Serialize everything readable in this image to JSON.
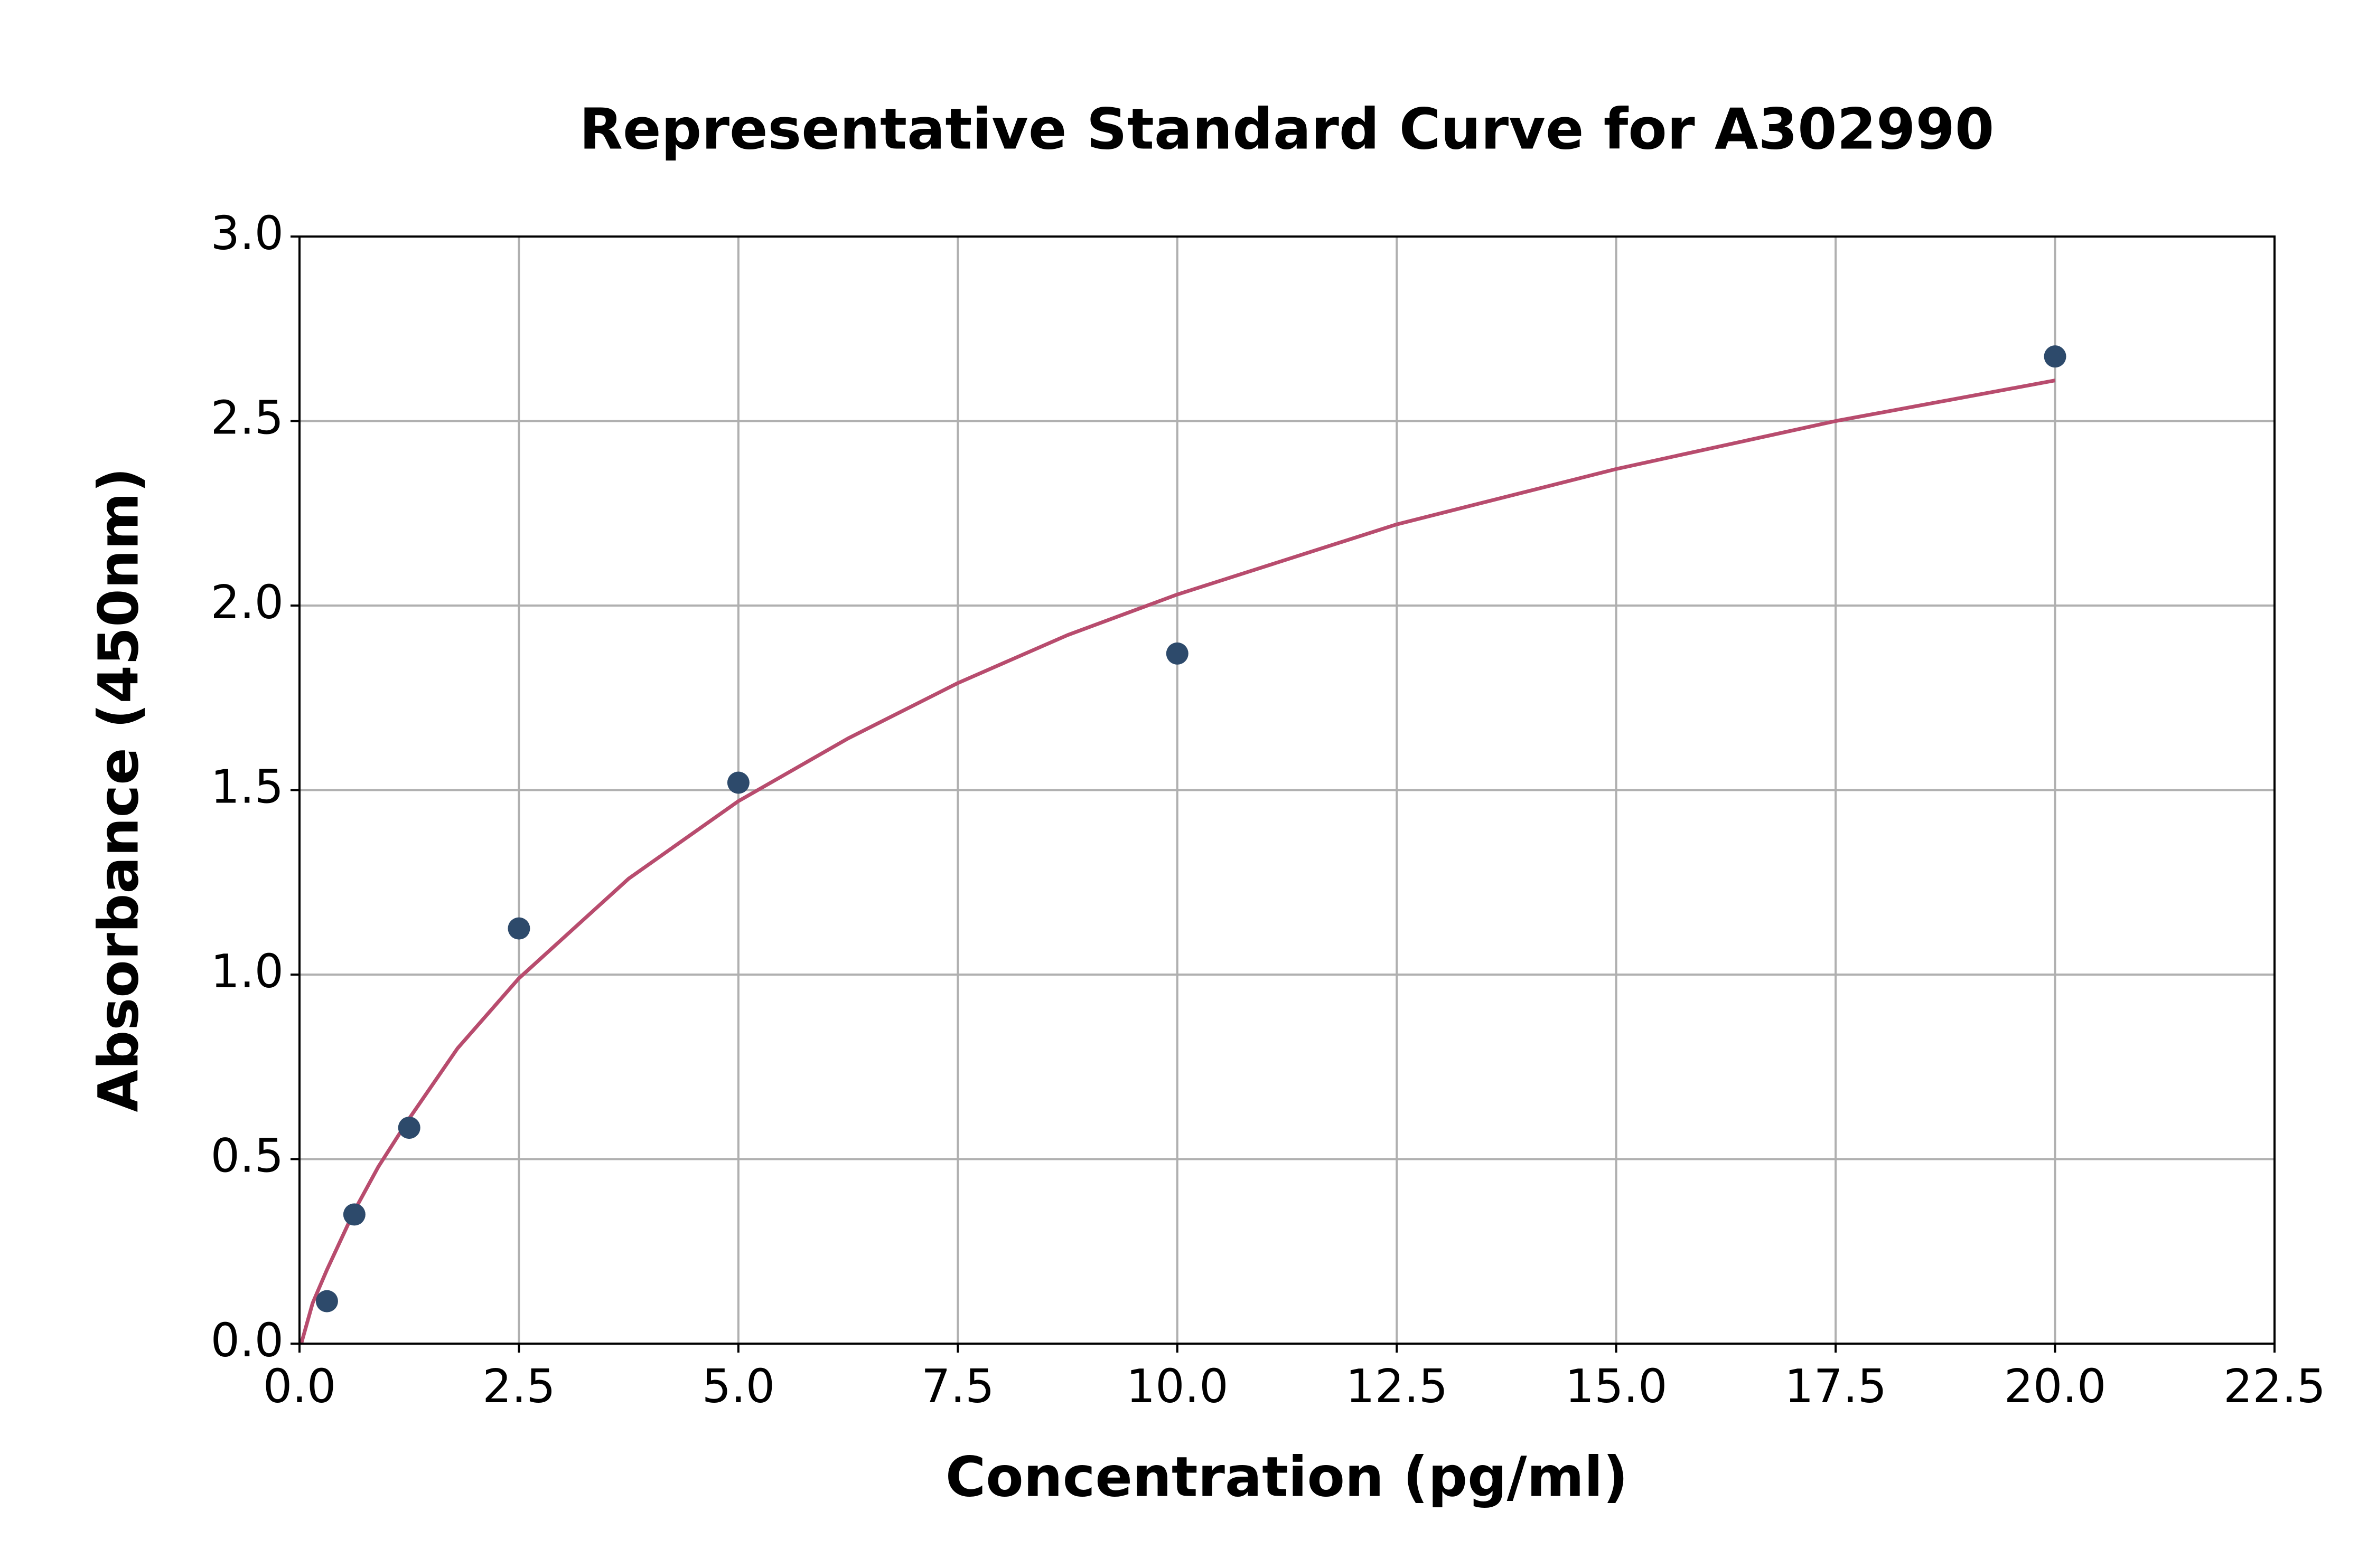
{
  "chart_data": {
    "type": "scatter",
    "title": "Representative Standard Curve for A302990",
    "x_label": "Concentration (pg/ml)",
    "y_label": "Absorbance (450nm)",
    "grid": true,
    "xlim": [
      0,
      22.5
    ],
    "ylim": [
      0,
      3
    ],
    "xticks": [
      {
        "value": 0,
        "label": "0.0"
      },
      2.5,
      {
        "value": 5,
        "label": "5.0"
      },
      7.5,
      {
        "value": 10,
        "label": "10.0"
      },
      12.5,
      {
        "value": 15,
        "label": "15.0"
      },
      17.5,
      {
        "value": 20,
        "label": "20.0"
      },
      22.5
    ],
    "yticks": [
      {
        "value": 0,
        "label": "0.0"
      },
      0.5,
      {
        "value": 1,
        "label": "1.0"
      },
      1.5,
      {
        "value": 2,
        "label": "2.0"
      },
      2.5,
      {
        "value": 3,
        "label": "3.0"
      }
    ],
    "series": [
      {
        "type": "scatter",
        "color": "#2d4a6b",
        "x": [
          0.3125,
          0.625,
          1.25,
          2.5,
          5,
          10,
          20
        ],
        "values": [
          0.115,
          0.35,
          0.585,
          1.125,
          1.52,
          1.87,
          2.675
        ]
      },
      {
        "type": "line",
        "color": "#b84c6e",
        "x": [
          0.02,
          0.15,
          0.3125,
          0.625,
          0.9,
          1.25,
          1.8,
          2.5,
          3.75,
          5,
          6.25,
          7.5,
          8.75,
          10,
          12.5,
          15,
          17.5,
          20
        ],
        "values": [
          0,
          0.11,
          0.2,
          0.36,
          0.48,
          0.61,
          0.8,
          0.99,
          1.26,
          1.47,
          1.64,
          1.79,
          1.92,
          2.03,
          2.22,
          2.37,
          2.5,
          2.61
        ]
      }
    ]
  }
}
